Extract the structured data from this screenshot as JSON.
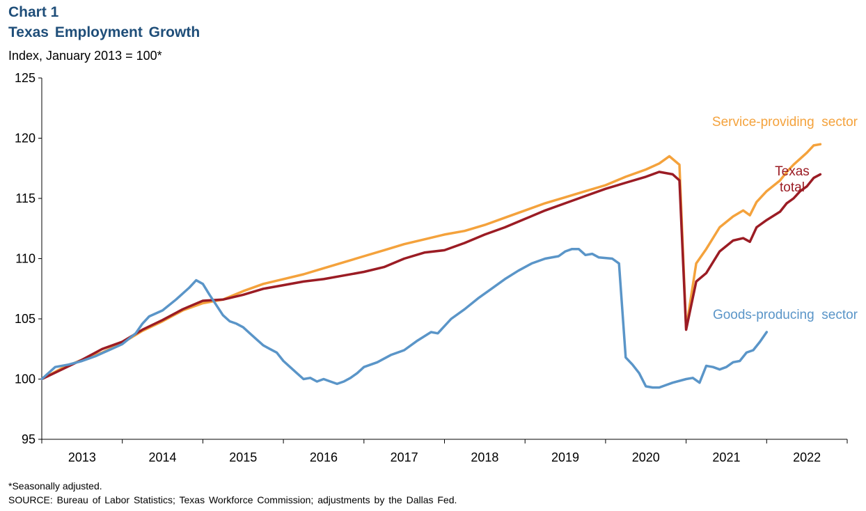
{
  "header": {
    "chart_number": "Chart 1",
    "title": "Texas Employment Growth",
    "subtitle": "Index, January 2013 = 100*"
  },
  "footer": {
    "footnote": "*Seasonally adjusted.",
    "source": "SOURCE: Bureau of Labor Statistics; Texas Workforce Commission; adjustments by the Dallas Fed."
  },
  "chart_data": {
    "type": "line",
    "title": "Texas Employment Growth",
    "ylabel": "Index, January 2013 = 100*",
    "xlabel": "",
    "ylim": [
      95,
      125
    ],
    "yticks": [
      95,
      100,
      105,
      110,
      115,
      120,
      125
    ],
    "x_start": "2013-01",
    "x_end": "2022-12",
    "x_tick_labels": [
      "2013",
      "2014",
      "2015",
      "2016",
      "2017",
      "2018",
      "2019",
      "2020",
      "2021",
      "2022"
    ],
    "grid": false,
    "series": [
      {
        "name": "Service-providing sector",
        "label_lines": [
          "Service-providing  sector"
        ],
        "color": "#f4a23c",
        "anchors": [
          [
            0,
            100
          ],
          [
            3,
            100.9
          ],
          [
            6,
            101.6
          ],
          [
            9,
            102.2
          ],
          [
            12,
            103.0
          ],
          [
            15,
            104.0
          ],
          [
            18,
            104.8
          ],
          [
            21,
            105.7
          ],
          [
            24,
            106.3
          ],
          [
            27,
            106.6
          ],
          [
            30,
            107.3
          ],
          [
            33,
            107.9
          ],
          [
            36,
            108.3
          ],
          [
            39,
            108.7
          ],
          [
            42,
            109.2
          ],
          [
            45,
            109.7
          ],
          [
            48,
            110.2
          ],
          [
            51,
            110.7
          ],
          [
            54,
            111.2
          ],
          [
            57,
            111.6
          ],
          [
            60,
            112.0
          ],
          [
            63,
            112.3
          ],
          [
            66,
            112.8
          ],
          [
            69,
            113.4
          ],
          [
            72,
            114.0
          ],
          [
            75,
            114.6
          ],
          [
            78,
            115.1
          ],
          [
            81,
            115.6
          ],
          [
            84,
            116.1
          ],
          [
            87,
            116.8
          ],
          [
            90,
            117.4
          ],
          [
            92,
            117.9
          ],
          [
            93.5,
            118.5
          ],
          [
            95,
            117.8
          ],
          [
            96,
            104.2
          ],
          [
            97.5,
            109.6
          ],
          [
            99,
            110.8
          ],
          [
            101,
            112.6
          ],
          [
            103,
            113.5
          ],
          [
            104.5,
            114.0
          ],
          [
            105.5,
            113.6
          ],
          [
            106.5,
            114.7
          ],
          [
            108,
            115.6
          ],
          [
            110,
            116.5
          ],
          [
            111,
            117.2
          ],
          [
            112,
            117.8
          ],
          [
            113,
            118.3
          ],
          [
            114,
            118.8
          ],
          [
            115,
            119.4
          ],
          [
            116,
            119.5
          ]
        ]
      },
      {
        "name": "Texas total",
        "label_lines": [
          "Texas",
          "total"
        ],
        "color": "#9b1c24",
        "anchors": [
          [
            0,
            100
          ],
          [
            3,
            100.8
          ],
          [
            6,
            101.6
          ],
          [
            9,
            102.5
          ],
          [
            12,
            103.1
          ],
          [
            15,
            104.1
          ],
          [
            18,
            104.9
          ],
          [
            21,
            105.8
          ],
          [
            24,
            106.5
          ],
          [
            27,
            106.6
          ],
          [
            30,
            107.0
          ],
          [
            33,
            107.5
          ],
          [
            36,
            107.8
          ],
          [
            39,
            108.1
          ],
          [
            42,
            108.3
          ],
          [
            45,
            108.6
          ],
          [
            48,
            108.9
          ],
          [
            51,
            109.3
          ],
          [
            54,
            110.0
          ],
          [
            57,
            110.5
          ],
          [
            60,
            110.7
          ],
          [
            63,
            111.3
          ],
          [
            66,
            112.0
          ],
          [
            69,
            112.6
          ],
          [
            72,
            113.3
          ],
          [
            75,
            114.0
          ],
          [
            78,
            114.6
          ],
          [
            81,
            115.2
          ],
          [
            84,
            115.8
          ],
          [
            87,
            116.3
          ],
          [
            90,
            116.8
          ],
          [
            92,
            117.2
          ],
          [
            94,
            117.0
          ],
          [
            95,
            116.5
          ],
          [
            96,
            104.1
          ],
          [
            97.5,
            108.1
          ],
          [
            99,
            108.8
          ],
          [
            101,
            110.6
          ],
          [
            103,
            111.5
          ],
          [
            104.5,
            111.7
          ],
          [
            105.5,
            111.4
          ],
          [
            106.5,
            112.6
          ],
          [
            108,
            113.2
          ],
          [
            110,
            113.9
          ],
          [
            111,
            114.6
          ],
          [
            112,
            115.0
          ],
          [
            113,
            115.6
          ],
          [
            114,
            116.0
          ],
          [
            115,
            116.7
          ],
          [
            116,
            117.0
          ]
        ]
      },
      {
        "name": "Goods-producing sector",
        "label_lines": [
          "Goods-producing  sector"
        ],
        "color": "#5a95c8",
        "anchors": [
          [
            0,
            100
          ],
          [
            2,
            101.0
          ],
          [
            4,
            101.2
          ],
          [
            6,
            101.5
          ],
          [
            8,
            101.9
          ],
          [
            10,
            102.4
          ],
          [
            12,
            102.9
          ],
          [
            14,
            103.8
          ],
          [
            15,
            104.6
          ],
          [
            16,
            105.2
          ],
          [
            18,
            105.7
          ],
          [
            20,
            106.6
          ],
          [
            22,
            107.6
          ],
          [
            23,
            108.2
          ],
          [
            24,
            107.9
          ],
          [
            25,
            107.0
          ],
          [
            27,
            105.3
          ],
          [
            28,
            104.8
          ],
          [
            29,
            104.6
          ],
          [
            30,
            104.3
          ],
          [
            31,
            103.8
          ],
          [
            32,
            103.3
          ],
          [
            33,
            102.8
          ],
          [
            34,
            102.5
          ],
          [
            35,
            102.2
          ],
          [
            36,
            101.5
          ],
          [
            37,
            101.0
          ],
          [
            38,
            100.5
          ],
          [
            39,
            100.0
          ],
          [
            40,
            100.1
          ],
          [
            41,
            99.8
          ],
          [
            42,
            100.0
          ],
          [
            43,
            99.8
          ],
          [
            44,
            99.6
          ],
          [
            45,
            99.8
          ],
          [
            46,
            100.1
          ],
          [
            47,
            100.5
          ],
          [
            48,
            101.0
          ],
          [
            50,
            101.4
          ],
          [
            52,
            102.0
          ],
          [
            54,
            102.4
          ],
          [
            56,
            103.2
          ],
          [
            58,
            103.9
          ],
          [
            59,
            103.8
          ],
          [
            61,
            105.0
          ],
          [
            63,
            105.8
          ],
          [
            65,
            106.7
          ],
          [
            67,
            107.5
          ],
          [
            69,
            108.3
          ],
          [
            71,
            109.0
          ],
          [
            73,
            109.6
          ],
          [
            75,
            110.0
          ],
          [
            77,
            110.2
          ],
          [
            78,
            110.6
          ],
          [
            79,
            110.8
          ],
          [
            80,
            110.8
          ],
          [
            81,
            110.3
          ],
          [
            82,
            110.4
          ],
          [
            83,
            110.1
          ],
          [
            85,
            110.0
          ],
          [
            86,
            109.6
          ],
          [
            87,
            101.8
          ],
          [
            88,
            101.2
          ],
          [
            89,
            100.5
          ],
          [
            90,
            99.4
          ],
          [
            91,
            99.3
          ],
          [
            92,
            99.3
          ],
          [
            93,
            99.5
          ],
          [
            94,
            99.7
          ],
          [
            96,
            100.0
          ],
          [
            97,
            100.1
          ],
          [
            98,
            99.7
          ],
          [
            99,
            101.1
          ],
          [
            100,
            101.0
          ],
          [
            101,
            100.8
          ],
          [
            102,
            101.0
          ],
          [
            103,
            101.4
          ],
          [
            104,
            101.5
          ],
          [
            105,
            102.2
          ],
          [
            106,
            102.4
          ],
          [
            107,
            103.1
          ],
          [
            108,
            103.9
          ]
        ]
      }
    ]
  }
}
